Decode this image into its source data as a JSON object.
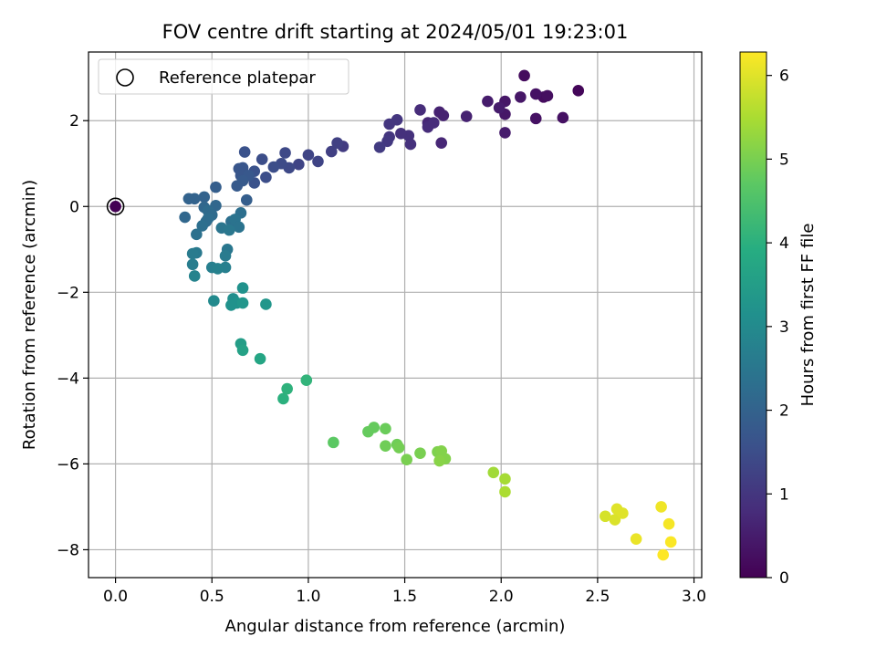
{
  "chart_data": {
    "type": "scatter",
    "title": "FOV centre drift starting at 2024/05/01 19:23:01",
    "xlabel": "Angular distance from reference (arcmin)",
    "ylabel": "Rotation from reference (arcmin)",
    "xlim": [
      -0.14,
      3.04
    ],
    "ylim": [
      -8.65,
      3.6
    ],
    "x_ticks": [
      0.0,
      0.5,
      1.0,
      1.5,
      2.0,
      2.5,
      3.0
    ],
    "x_tick_labels": [
      "0.0",
      "0.5",
      "1.0",
      "1.5",
      "2.0",
      "2.5",
      "3.0"
    ],
    "y_ticks": [
      -8,
      -6,
      -4,
      -2,
      0,
      2
    ],
    "y_tick_labels": [
      "−8",
      "−6",
      "−4",
      "−2",
      "0",
      "2"
    ],
    "grid": true,
    "legend": {
      "placement": "top-left",
      "entries": [
        {
          "label": "Reference platepar",
          "marker": "open-circle"
        }
      ]
    },
    "reference_point": {
      "x": 0.0,
      "y": 0.0
    },
    "colorbar": {
      "label": "Hours from first FF file",
      "range": [
        0,
        6.28
      ],
      "ticks": [
        0,
        1,
        2,
        3,
        4,
        5,
        6
      ],
      "tick_labels": [
        "0",
        "1",
        "2",
        "3",
        "4",
        "5",
        "6"
      ],
      "colormap": "viridis"
    },
    "series": [
      {
        "points": [
          [
            0.0,
            0.0,
            0.0
          ],
          [
            2.4,
            2.7,
            0.1
          ],
          [
            2.12,
            3.05,
            0.2
          ],
          [
            2.22,
            2.55,
            0.2
          ],
          [
            2.24,
            2.58,
            0.25
          ],
          [
            2.18,
            2.62,
            0.3
          ],
          [
            2.18,
            2.05,
            0.3
          ],
          [
            2.32,
            2.07,
            0.3
          ],
          [
            2.02,
            2.45,
            0.4
          ],
          [
            2.02,
            2.15,
            0.4
          ],
          [
            2.1,
            2.55,
            0.4
          ],
          [
            2.02,
            1.72,
            0.5
          ],
          [
            1.99,
            2.3,
            0.5
          ],
          [
            1.93,
            2.45,
            0.5
          ],
          [
            1.82,
            2.1,
            0.6
          ],
          [
            1.7,
            2.12,
            0.6
          ],
          [
            1.68,
            2.2,
            0.6
          ],
          [
            1.69,
            1.48,
            0.7
          ],
          [
            1.62,
            1.95,
            0.7
          ],
          [
            1.62,
            1.85,
            0.8
          ],
          [
            1.58,
            2.25,
            0.8
          ],
          [
            1.65,
            1.95,
            0.8
          ],
          [
            1.52,
            1.65,
            0.9
          ],
          [
            1.53,
            1.45,
            0.9
          ],
          [
            1.48,
            1.7,
            0.9
          ],
          [
            1.46,
            2.02,
            1.0
          ],
          [
            1.42,
            1.92,
            1.0
          ],
          [
            1.42,
            1.62,
            1.0
          ],
          [
            1.41,
            1.52,
            1.05
          ],
          [
            1.37,
            1.38,
            1.1
          ],
          [
            1.18,
            1.4,
            1.1
          ],
          [
            1.15,
            1.48,
            1.2
          ],
          [
            1.12,
            1.28,
            1.2
          ],
          [
            1.05,
            1.05,
            1.3
          ],
          [
            1.0,
            1.2,
            1.3
          ],
          [
            0.95,
            0.98,
            1.3
          ],
          [
            0.9,
            0.9,
            1.4
          ],
          [
            0.88,
            1.25,
            1.4
          ],
          [
            0.86,
            1.0,
            1.45
          ],
          [
            0.82,
            0.92,
            1.5
          ],
          [
            0.78,
            0.68,
            1.5
          ],
          [
            0.76,
            1.1,
            1.5
          ],
          [
            0.72,
            0.55,
            1.6
          ],
          [
            0.72,
            0.82,
            1.6
          ],
          [
            0.67,
            1.27,
            1.6
          ],
          [
            0.66,
            0.9,
            1.7
          ],
          [
            0.64,
            0.88,
            1.7
          ],
          [
            0.65,
            0.72,
            1.7
          ],
          [
            0.69,
            0.72,
            1.75
          ],
          [
            0.66,
            0.6,
            1.8
          ],
          [
            0.63,
            0.48,
            1.8
          ],
          [
            0.68,
            0.15,
            1.9
          ],
          [
            0.52,
            0.45,
            1.9
          ],
          [
            0.46,
            0.22,
            2.0
          ],
          [
            0.41,
            0.18,
            2.0
          ],
          [
            0.38,
            0.18,
            2.0
          ],
          [
            0.36,
            -0.25,
            2.1
          ],
          [
            0.46,
            -0.02,
            2.1
          ],
          [
            0.52,
            0.02,
            2.1
          ],
          [
            0.48,
            -0.1,
            2.2
          ],
          [
            0.5,
            -0.2,
            2.2
          ],
          [
            0.47,
            -0.35,
            2.2
          ],
          [
            0.48,
            -0.28,
            2.25
          ],
          [
            0.65,
            -0.15,
            2.3
          ],
          [
            0.6,
            -0.35,
            2.3
          ],
          [
            0.45,
            -0.45,
            2.3
          ],
          [
            0.42,
            -0.65,
            2.35
          ],
          [
            0.62,
            -0.3,
            2.4
          ],
          [
            0.64,
            -0.48,
            2.4
          ],
          [
            0.55,
            -0.5,
            2.45
          ],
          [
            0.59,
            -0.55,
            2.5
          ],
          [
            0.58,
            -1.0,
            2.5
          ],
          [
            0.42,
            -1.08,
            2.55
          ],
          [
            0.4,
            -1.1,
            2.6
          ],
          [
            0.57,
            -1.15,
            2.6
          ],
          [
            0.4,
            -1.35,
            2.65
          ],
          [
            0.5,
            -1.42,
            2.7
          ],
          [
            0.57,
            -1.42,
            2.7
          ],
          [
            0.53,
            -1.45,
            2.75
          ],
          [
            0.41,
            -1.62,
            2.8
          ],
          [
            0.51,
            -2.2,
            3.0
          ],
          [
            0.61,
            -2.15,
            3.1
          ],
          [
            0.63,
            -2.25,
            3.2
          ],
          [
            0.6,
            -2.3,
            3.2
          ],
          [
            0.66,
            -1.9,
            3.2
          ],
          [
            0.66,
            -2.25,
            3.3
          ],
          [
            0.78,
            -2.28,
            3.3
          ],
          [
            0.65,
            -3.2,
            3.5
          ],
          [
            0.66,
            -3.35,
            3.6
          ],
          [
            0.75,
            -3.55,
            3.7
          ],
          [
            0.87,
            -4.48,
            4.0
          ],
          [
            0.89,
            -4.25,
            4.05
          ],
          [
            0.99,
            -4.05,
            4.1
          ],
          [
            1.13,
            -5.5,
            4.7
          ],
          [
            1.31,
            -5.25,
            4.8
          ],
          [
            1.34,
            -5.15,
            4.8
          ],
          [
            1.4,
            -5.18,
            4.85
          ],
          [
            1.4,
            -5.58,
            4.9
          ],
          [
            1.46,
            -5.55,
            4.9
          ],
          [
            1.47,
            -5.62,
            4.95
          ],
          [
            1.51,
            -5.9,
            5.0
          ],
          [
            1.58,
            -5.75,
            5.0
          ],
          [
            1.67,
            -5.72,
            5.05
          ],
          [
            1.69,
            -5.7,
            5.1
          ],
          [
            1.71,
            -5.88,
            5.1
          ],
          [
            1.68,
            -5.93,
            5.15
          ],
          [
            1.96,
            -6.2,
            5.4
          ],
          [
            2.02,
            -6.35,
            5.45
          ],
          [
            2.02,
            -6.65,
            5.5
          ],
          [
            2.54,
            -7.22,
            5.9
          ],
          [
            2.59,
            -7.3,
            5.95
          ],
          [
            2.6,
            -7.05,
            6.0
          ],
          [
            2.63,
            -7.15,
            6.0
          ],
          [
            2.7,
            -7.75,
            6.1
          ],
          [
            2.83,
            -7.0,
            6.15
          ],
          [
            2.87,
            -7.4,
            6.2
          ],
          [
            2.88,
            -7.82,
            6.25
          ],
          [
            2.84,
            -8.12,
            6.28
          ]
        ]
      }
    ]
  }
}
